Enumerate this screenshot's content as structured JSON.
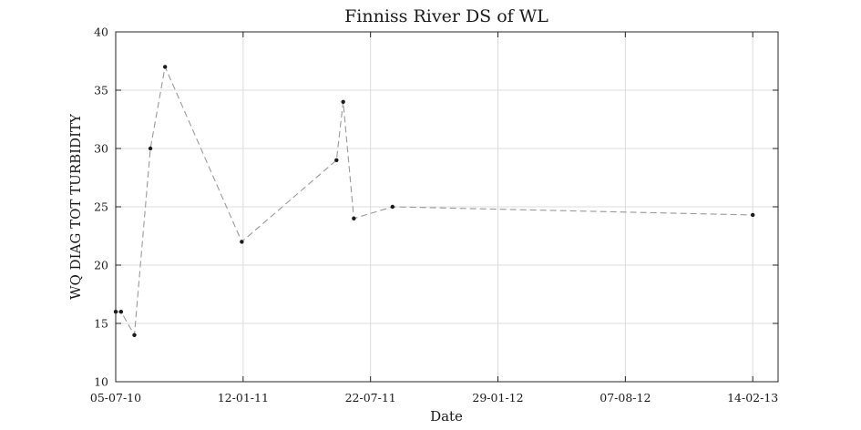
{
  "chart_data": {
    "type": "line",
    "title": "Finniss River DS of WL",
    "xlabel": "Date",
    "ylabel": "WQ DIAG TOT TURBIDITY",
    "x_ticks": [
      "05-07-10",
      "12-01-11",
      "22-07-11",
      "29-01-12",
      "07-08-12",
      "14-02-13"
    ],
    "xlim": [
      "05-07-10",
      "24-03-13"
    ],
    "ylim": [
      10,
      40
    ],
    "y_ticks": [
      10,
      15,
      20,
      25,
      30,
      35,
      40
    ],
    "grid": true,
    "series": [
      {
        "line_style": "dashed",
        "line_color": "#9a9a9a",
        "marker_color": "#1a1a1a",
        "points": [
          {
            "x": "05-07-10",
            "y": 16
          },
          {
            "x": "13-07-10",
            "y": 16
          },
          {
            "x": "02-08-10",
            "y": 14
          },
          {
            "x": "26-08-10",
            "y": 30
          },
          {
            "x": "17-09-10",
            "y": 37
          },
          {
            "x": "10-01-11",
            "y": 22
          },
          {
            "x": "01-06-11",
            "y": 29
          },
          {
            "x": "11-06-11",
            "y": 34
          },
          {
            "x": "27-06-11",
            "y": 24
          },
          {
            "x": "24-08-11",
            "y": 25
          },
          {
            "x": "14-02-13",
            "y": 24.3
          }
        ]
      }
    ]
  }
}
